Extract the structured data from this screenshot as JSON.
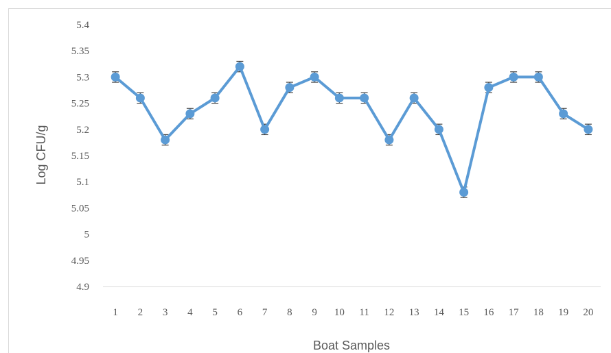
{
  "chart_data": {
    "type": "line",
    "title": "",
    "xlabel": "Boat Samples",
    "ylabel": "Log CFU/g",
    "ylim": [
      4.9,
      5.4
    ],
    "y_ticks": [
      "4.9",
      "4.95",
      "5",
      "5.05",
      "5.1",
      "5.15",
      "5.2",
      "5.25",
      "5.3",
      "5.35",
      "5.4"
    ],
    "categories": [
      "1",
      "2",
      "3",
      "4",
      "5",
      "6",
      "7",
      "8",
      "9",
      "10",
      "11",
      "12",
      "13",
      "14",
      "15",
      "16",
      "17",
      "18",
      "19",
      "20"
    ],
    "series": [
      {
        "values": [
          5.3,
          5.26,
          5.18,
          5.23,
          5.26,
          5.32,
          5.2,
          5.28,
          5.3,
          5.26,
          5.26,
          5.18,
          5.26,
          5.2,
          5.08,
          5.28,
          5.3,
          5.3,
          5.23,
          5.2
        ],
        "error": [
          0.01,
          0.01,
          0.01,
          0.01,
          0.01,
          0.01,
          0.01,
          0.01,
          0.01,
          0.01,
          0.01,
          0.01,
          0.01,
          0.01,
          0.01,
          0.01,
          0.01,
          0.01,
          0.01,
          0.01
        ],
        "color": "#5b9bd5"
      }
    ],
    "grid": false,
    "legend": "none",
    "axis_color": "#d9d9d9",
    "text_color": "#595959",
    "errorbar_color": "#404040"
  }
}
